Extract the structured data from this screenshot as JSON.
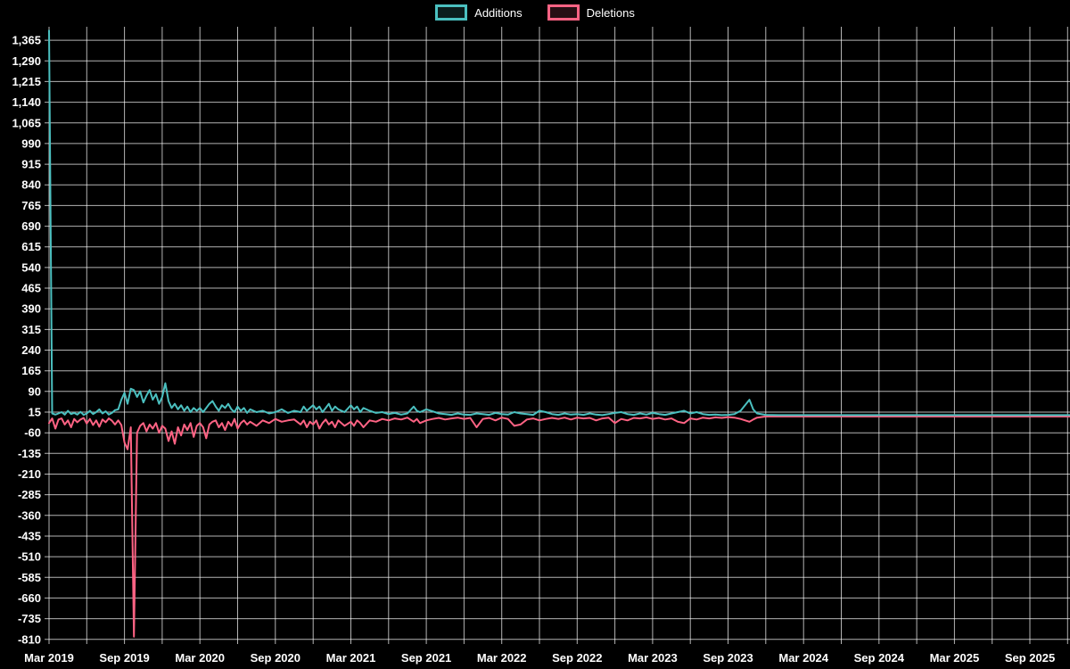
{
  "page": {
    "background_color": "#000000",
    "text_color": "#ffffff"
  },
  "chart_data": {
    "type": "line",
    "title": "",
    "xlabel": "",
    "ylabel": "",
    "legend_position": "top-center",
    "grid": true,
    "grid_color": "rgba(255,255,255,0.7)",
    "text_color": "#ffffff",
    "background": "#000000",
    "x_tick_labels": [
      "Mar 2019",
      "Sep 2019",
      "Mar 2020",
      "Sep 2020",
      "Mar 2021",
      "Sep 2021",
      "Mar 2022",
      "Sep 2022",
      "Mar 2023",
      "Sep 2023",
      "Mar 2024",
      "Sep 2024",
      "Mar 2025",
      "Sep 2025"
    ],
    "x_tick_step_months": 6,
    "x_gridline_step_months": 3,
    "x_domain_months": [
      0,
      81.2
    ],
    "y_tick_labels": [
      "1,365",
      "1,290",
      "1,215",
      "1,140",
      "1,065",
      "990",
      "915",
      "840",
      "765",
      "690",
      "615",
      "540",
      "465",
      "390",
      "315",
      "240",
      "165",
      "90",
      "15",
      "-60",
      "-135",
      "-210",
      "-285",
      "-360",
      "-435",
      "-510",
      "-585",
      "-660",
      "-735",
      "-810"
    ],
    "y_domain": [
      -827,
      1414
    ],
    "series": [
      {
        "name": "Additions",
        "color": "#4bc0c0",
        "fill": "rgba(75,192,192,0.15)"
      },
      {
        "name": "Deletions",
        "color": "#ff6384",
        "fill": "rgba(255,99,132,0.15)"
      }
    ],
    "points_format": [
      "months_since_mar_2019",
      "additions",
      "deletions"
    ],
    "points": [
      [
        0,
        1400,
        -25
      ],
      [
        0.25,
        10,
        -8
      ],
      [
        0.5,
        6,
        -45
      ],
      [
        0.75,
        10,
        -12
      ],
      [
        1,
        15,
        -8
      ],
      [
        1.25,
        6,
        -30
      ],
      [
        1.5,
        20,
        -15
      ],
      [
        1.75,
        8,
        -40
      ],
      [
        2,
        12,
        -10
      ],
      [
        2.25,
        6,
        -22
      ],
      [
        2.5,
        16,
        -12
      ],
      [
        2.75,
        5,
        -6
      ],
      [
        3,
        10,
        -26
      ],
      [
        3.25,
        20,
        -10
      ],
      [
        3.5,
        8,
        -32
      ],
      [
        3.75,
        15,
        -15
      ],
      [
        4,
        25,
        -38
      ],
      [
        4.25,
        10,
        -12
      ],
      [
        4.5,
        18,
        -22
      ],
      [
        4.75,
        6,
        -8
      ],
      [
        5,
        12,
        -16
      ],
      [
        5.25,
        22,
        -30
      ],
      [
        5.5,
        25,
        -15
      ],
      [
        5.75,
        60,
        -32
      ],
      [
        6,
        85,
        -95
      ],
      [
        6.25,
        45,
        -120
      ],
      [
        6.5,
        100,
        -40
      ],
      [
        6.75,
        95,
        -800
      ],
      [
        7,
        70,
        -60
      ],
      [
        7.25,
        90,
        -35
      ],
      [
        7.5,
        50,
        -25
      ],
      [
        7.75,
        75,
        -55
      ],
      [
        8,
        95,
        -30
      ],
      [
        8.25,
        60,
        -45
      ],
      [
        8.5,
        80,
        -25
      ],
      [
        8.75,
        45,
        -60
      ],
      [
        9,
        70,
        -35
      ],
      [
        9.25,
        120,
        -45
      ],
      [
        9.5,
        55,
        -90
      ],
      [
        9.75,
        30,
        -55
      ],
      [
        10,
        45,
        -100
      ],
      [
        10.25,
        25,
        -40
      ],
      [
        10.5,
        40,
        -70
      ],
      [
        10.75,
        20,
        -30
      ],
      [
        11,
        35,
        -50
      ],
      [
        11.25,
        15,
        -25
      ],
      [
        11.5,
        30,
        -75
      ],
      [
        11.75,
        20,
        -35
      ],
      [
        12,
        30,
        -25
      ],
      [
        12.25,
        15,
        -40
      ],
      [
        12.5,
        30,
        -80
      ],
      [
        12.75,
        45,
        -30
      ],
      [
        13,
        55,
        -20
      ],
      [
        13.25,
        35,
        -15
      ],
      [
        13.5,
        20,
        -40
      ],
      [
        13.75,
        40,
        -25
      ],
      [
        14,
        30,
        -50
      ],
      [
        14.25,
        45,
        -20
      ],
      [
        14.5,
        25,
        -35
      ],
      [
        14.75,
        15,
        -10
      ],
      [
        15,
        35,
        -45
      ],
      [
        15.25,
        20,
        -25
      ],
      [
        15.5,
        30,
        -15
      ],
      [
        15.75,
        12,
        -30
      ],
      [
        16,
        25,
        -20
      ],
      [
        16.5,
        15,
        -35
      ],
      [
        17,
        20,
        -15
      ],
      [
        17.5,
        10,
        -25
      ],
      [
        18,
        15,
        -10
      ],
      [
        18.5,
        25,
        -20
      ],
      [
        19,
        12,
        -15
      ],
      [
        19.5,
        20,
        -12
      ],
      [
        20,
        15,
        -30
      ],
      [
        20.25,
        35,
        -15
      ],
      [
        20.5,
        20,
        -40
      ],
      [
        20.75,
        30,
        -20
      ],
      [
        21,
        40,
        -30
      ],
      [
        21.25,
        25,
        -15
      ],
      [
        21.5,
        35,
        -45
      ],
      [
        21.75,
        15,
        -25
      ],
      [
        22,
        30,
        -12
      ],
      [
        22.25,
        45,
        -30
      ],
      [
        22.5,
        20,
        -20
      ],
      [
        22.75,
        35,
        -40
      ],
      [
        23,
        25,
        -15
      ],
      [
        23.5,
        15,
        -35
      ],
      [
        24,
        40,
        -20
      ],
      [
        24.25,
        25,
        -35
      ],
      [
        24.5,
        35,
        -15
      ],
      [
        24.75,
        15,
        -25
      ],
      [
        25,
        30,
        -40
      ],
      [
        25.5,
        20,
        -15
      ],
      [
        26,
        12,
        -20
      ],
      [
        26.5,
        15,
        -10
      ],
      [
        27,
        8,
        -15
      ],
      [
        27.5,
        12,
        -8
      ],
      [
        28,
        6,
        -12
      ],
      [
        28.5,
        10,
        -5
      ],
      [
        29,
        35,
        -20
      ],
      [
        29.25,
        20,
        -10
      ],
      [
        29.5,
        15,
        -25
      ],
      [
        30,
        25,
        -15
      ],
      [
        30.5,
        18,
        -10
      ],
      [
        31,
        10,
        -6
      ],
      [
        31.5,
        8,
        -12
      ],
      [
        32,
        5,
        -8
      ],
      [
        32.5,
        10,
        -5
      ],
      [
        33,
        6,
        -10
      ],
      [
        33.5,
        5,
        -6
      ],
      [
        34,
        10,
        -40
      ],
      [
        34.5,
        8,
        -10
      ],
      [
        35,
        5,
        -6
      ],
      [
        35.5,
        12,
        -15
      ],
      [
        36,
        8,
        -5
      ],
      [
        36.5,
        6,
        -10
      ],
      [
        37,
        15,
        -35
      ],
      [
        37.5,
        10,
        -30
      ],
      [
        38,
        8,
        -12
      ],
      [
        38.5,
        5,
        -8
      ],
      [
        39,
        20,
        -15
      ],
      [
        39.5,
        15,
        -10
      ],
      [
        40,
        8,
        -6
      ],
      [
        40.5,
        5,
        -10
      ],
      [
        41,
        10,
        -5
      ],
      [
        41.5,
        6,
        -12
      ],
      [
        42,
        8,
        -5
      ],
      [
        42.5,
        5,
        -8
      ],
      [
        43,
        10,
        -6
      ],
      [
        43.5,
        6,
        -15
      ],
      [
        44,
        4,
        -8
      ],
      [
        44.5,
        8,
        -5
      ],
      [
        45,
        12,
        -25
      ],
      [
        45.5,
        15,
        -10
      ],
      [
        46,
        8,
        -15
      ],
      [
        46.5,
        5,
        -6
      ],
      [
        47,
        10,
        -8
      ],
      [
        47.5,
        6,
        -4
      ],
      [
        48,
        12,
        -10
      ],
      [
        48.5,
        8,
        -6
      ],
      [
        49,
        5,
        -12
      ],
      [
        49.5,
        10,
        -8
      ],
      [
        50,
        15,
        -20
      ],
      [
        50.5,
        20,
        -25
      ],
      [
        51,
        10,
        -8
      ],
      [
        51.5,
        15,
        -12
      ],
      [
        52,
        8,
        -5
      ],
      [
        52.5,
        5,
        -8
      ],
      [
        53,
        6,
        -4
      ],
      [
        53.5,
        4,
        -6
      ],
      [
        54,
        5,
        -3
      ],
      [
        54.5,
        8,
        -5
      ],
      [
        55,
        20,
        -10
      ],
      [
        55.7,
        60,
        -20
      ],
      [
        56,
        25,
        -12
      ],
      [
        56.3,
        10,
        -5
      ],
      [
        57,
        5,
        -1
      ],
      [
        58,
        4,
        -1
      ],
      [
        60,
        4,
        -1
      ],
      [
        62,
        4,
        -1
      ],
      [
        64,
        4,
        -1
      ],
      [
        66,
        4,
        -1
      ],
      [
        68,
        4,
        -1
      ],
      [
        70,
        4,
        -1
      ],
      [
        72,
        4,
        -1
      ],
      [
        74,
        4,
        -1
      ],
      [
        76,
        4,
        -1
      ],
      [
        78,
        4,
        -1
      ],
      [
        80,
        4,
        -1
      ],
      [
        81.2,
        4,
        -1
      ]
    ]
  }
}
